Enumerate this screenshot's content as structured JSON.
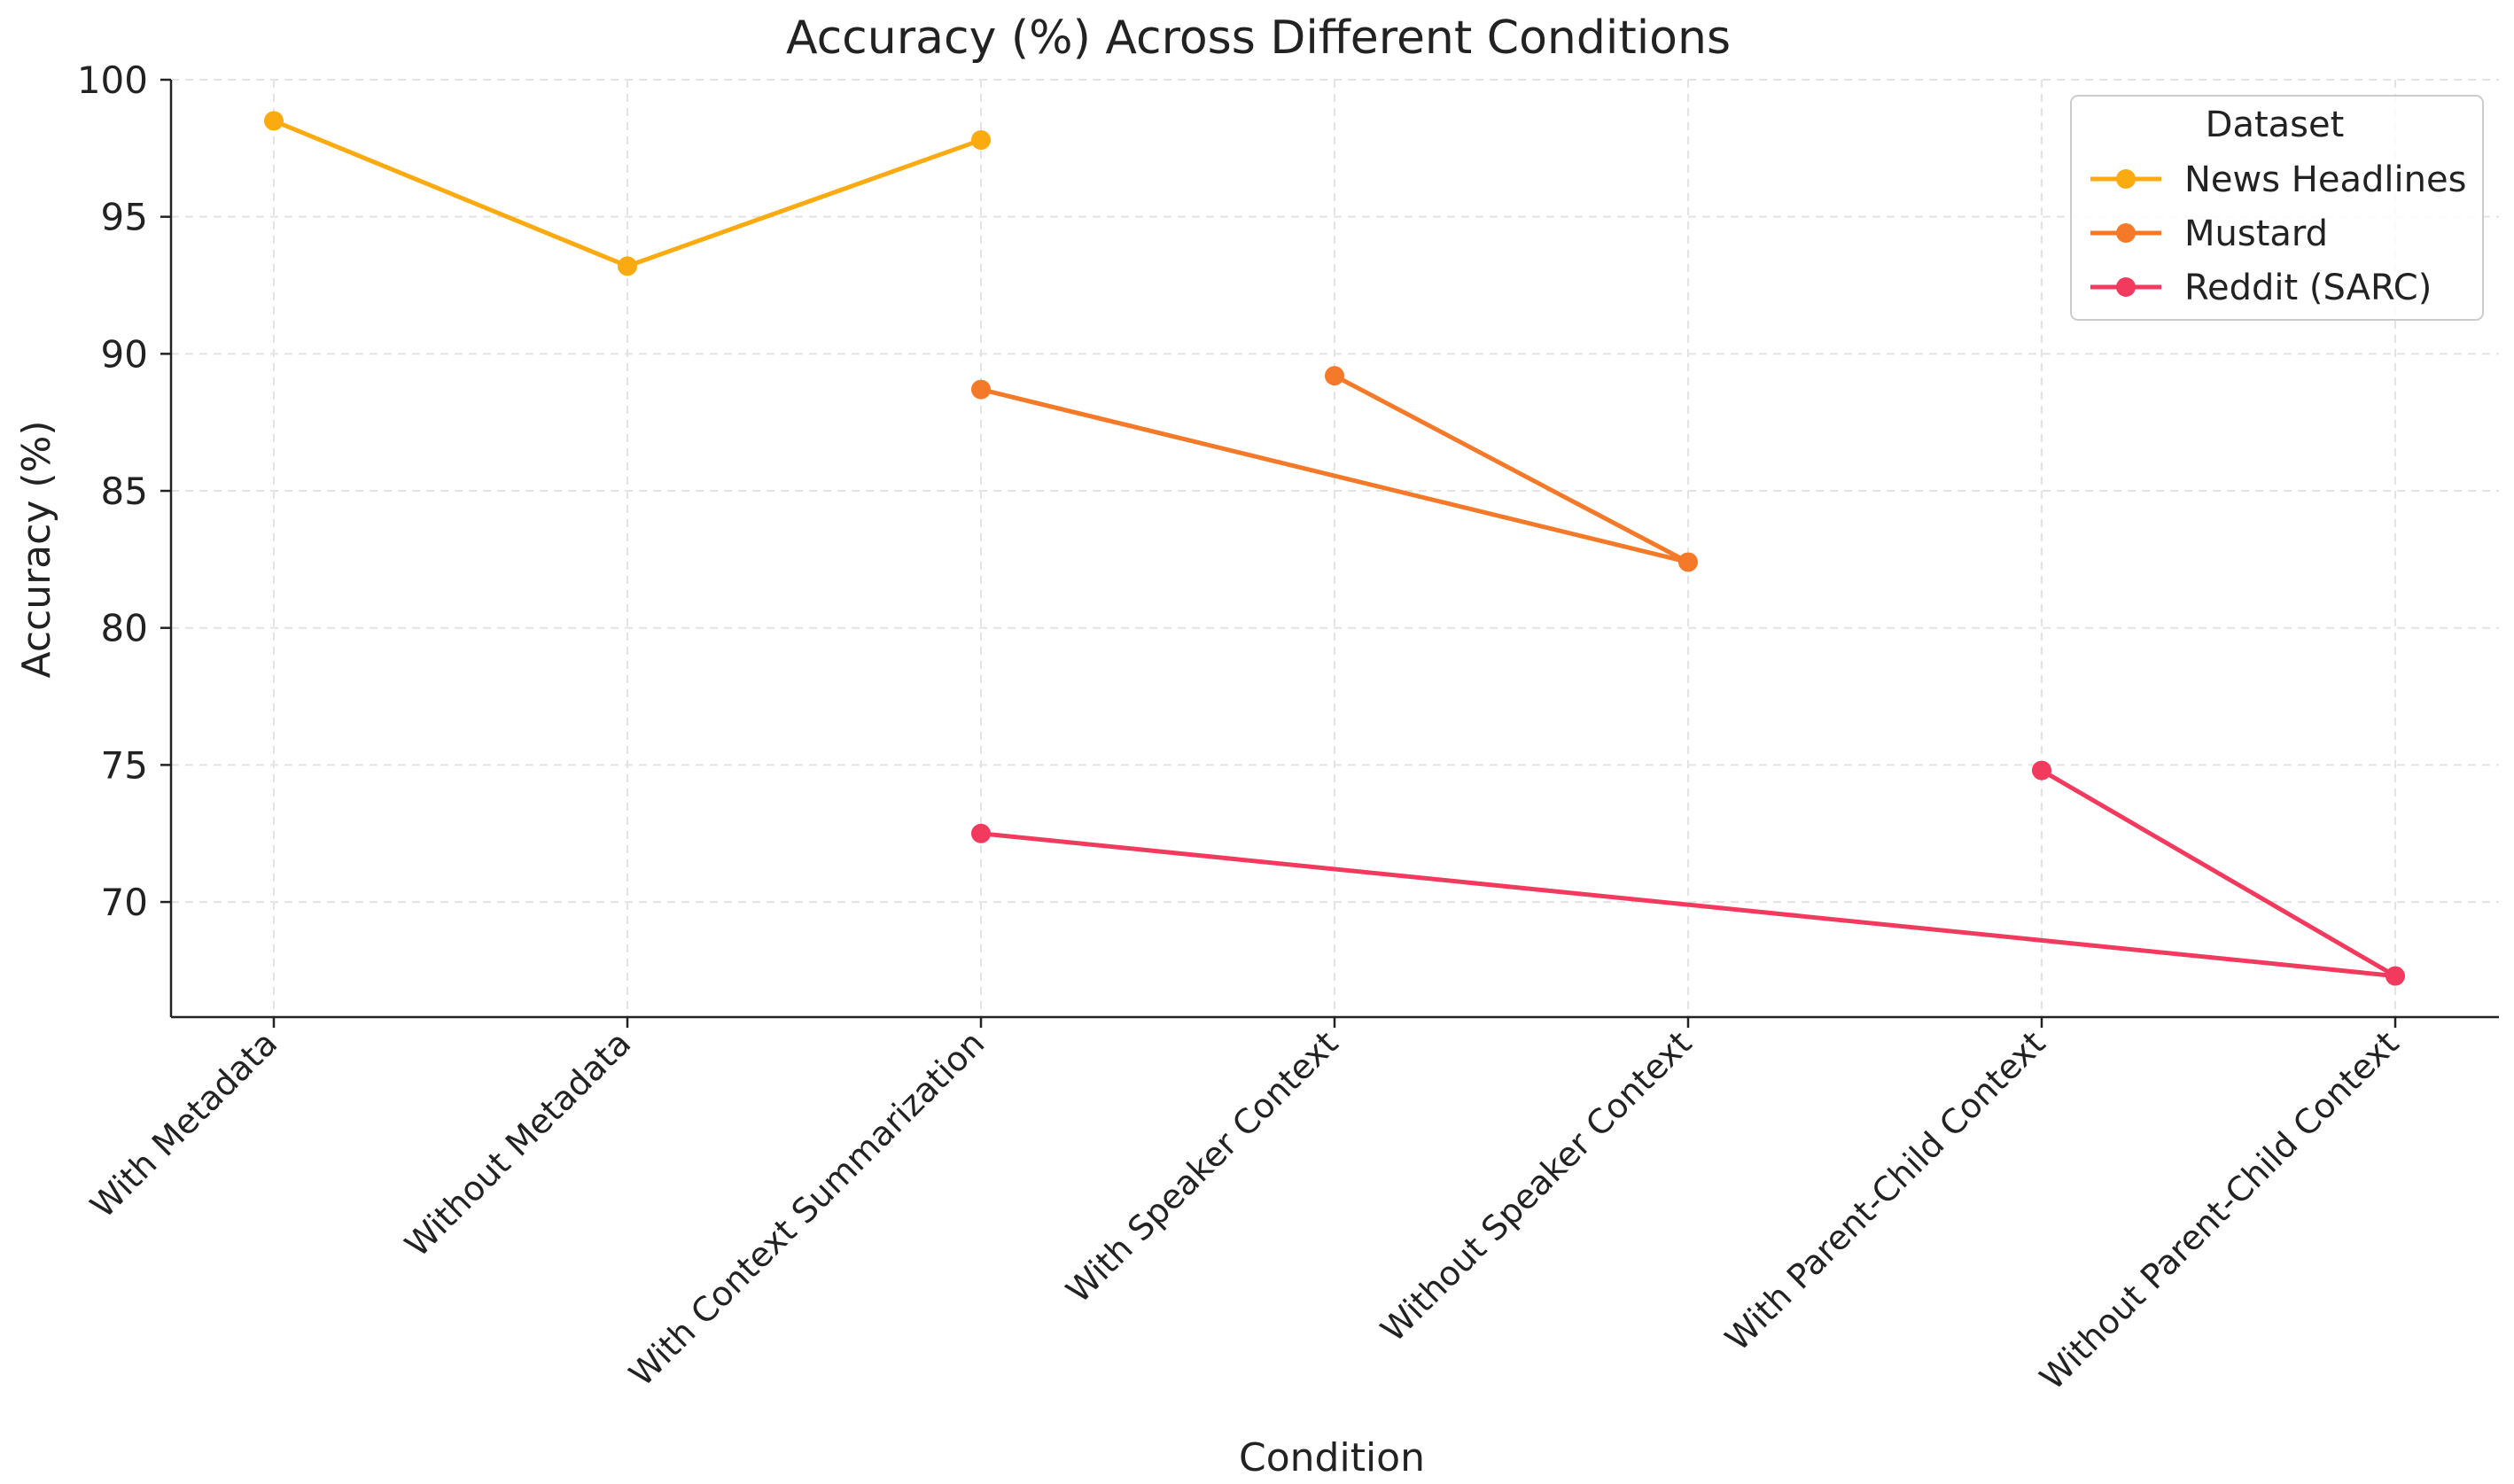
{
  "chart_data": {
    "type": "line",
    "title": "Accuracy (%) Across Different Conditions",
    "xlabel": "Condition",
    "ylabel": "Accuracy (%)",
    "categories": [
      "With Metadata",
      "Without Metadata",
      "With Context Summarization",
      "With Speaker Context",
      "Without Speaker Context",
      "With Parent-Child Context",
      "Without Parent-Child Context"
    ],
    "ylim": [
      65.8,
      100
    ],
    "yticks": [
      70,
      75,
      80,
      85,
      90,
      95,
      100
    ],
    "grid": true,
    "legend": {
      "title": "Dataset",
      "placement": "top-right"
    },
    "series": [
      {
        "name": "News Headlines",
        "color": "#fbaa10",
        "points": [
          {
            "x": "With Metadata",
            "y": 98.5
          },
          {
            "x": "Without Metadata",
            "y": 93.2
          },
          {
            "x": "With Context Summarization",
            "y": 97.8
          }
        ]
      },
      {
        "name": "Mustard",
        "color": "#f47a29",
        "points": [
          {
            "x": "With Context Summarization",
            "y": 88.7
          },
          {
            "x": "Without Speaker Context",
            "y": 82.4
          },
          {
            "x": "With Speaker Context",
            "y": 89.2
          }
        ]
      },
      {
        "name": "Reddit (SARC)",
        "color": "#f23a5e",
        "points": [
          {
            "x": "With Context Summarization",
            "y": 72.5
          },
          {
            "x": "Without Parent-Child Context",
            "y": 67.3
          },
          {
            "x": "With Parent-Child Context",
            "y": 74.8
          }
        ]
      }
    ]
  }
}
